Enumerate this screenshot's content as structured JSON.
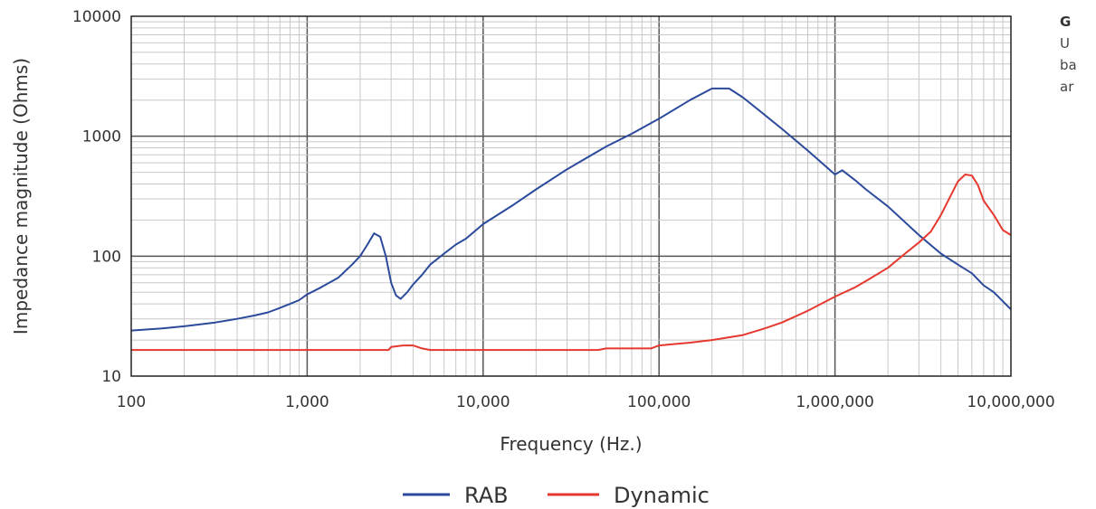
{
  "side_note": {
    "line1": "G",
    "line2": "U",
    "line3": "ba",
    "line4": "ar"
  },
  "chart_data": {
    "type": "line",
    "title": "",
    "xlabel": "Frequency (Hz.)",
    "ylabel": "Impedance magnitude (Ohms)",
    "xscale": "log",
    "yscale": "log",
    "xlim": [
      100,
      10000000
    ],
    "ylim": [
      10,
      10000
    ],
    "grid": true,
    "legend": "bottom-center",
    "x_ticks": [
      {
        "value": 100,
        "label": "100"
      },
      {
        "value": 1000,
        "label": "1,000"
      },
      {
        "value": 10000,
        "label": "10,000"
      },
      {
        "value": 100000,
        "label": "100,000"
      },
      {
        "value": 1000000,
        "label": "1,000,000"
      },
      {
        "value": 10000000,
        "label": "10,000,000"
      }
    ],
    "y_ticks": [
      {
        "value": 10,
        "label": "10"
      },
      {
        "value": 100,
        "label": "100"
      },
      {
        "value": 1000,
        "label": "1000"
      },
      {
        "value": 10000,
        "label": "10000"
      }
    ],
    "series": [
      {
        "name": "RAB",
        "color": "#2b4a9b",
        "points": [
          [
            100,
            24
          ],
          [
            150,
            25
          ],
          [
            200,
            26
          ],
          [
            300,
            28
          ],
          [
            400,
            30
          ],
          [
            500,
            32
          ],
          [
            600,
            34
          ],
          [
            700,
            37
          ],
          [
            800,
            40
          ],
          [
            900,
            43
          ],
          [
            1000,
            48
          ],
          [
            1200,
            55
          ],
          [
            1500,
            66
          ],
          [
            1800,
            85
          ],
          [
            2000,
            100
          ],
          [
            2200,
            125
          ],
          [
            2400,
            155
          ],
          [
            2600,
            145
          ],
          [
            2800,
            100
          ],
          [
            3000,
            60
          ],
          [
            3200,
            47
          ],
          [
            3400,
            44
          ],
          [
            3700,
            50
          ],
          [
            4000,
            58
          ],
          [
            4500,
            70
          ],
          [
            5000,
            85
          ],
          [
            6000,
            105
          ],
          [
            7000,
            125
          ],
          [
            8000,
            140
          ],
          [
            10000,
            185
          ],
          [
            15000,
            270
          ],
          [
            20000,
            360
          ],
          [
            30000,
            530
          ],
          [
            50000,
            820
          ],
          [
            70000,
            1050
          ],
          [
            100000,
            1400
          ],
          [
            150000,
            2000
          ],
          [
            200000,
            2500
          ],
          [
            250000,
            2500
          ],
          [
            300000,
            2100
          ],
          [
            400000,
            1500
          ],
          [
            500000,
            1150
          ],
          [
            700000,
            760
          ],
          [
            1000000,
            480
          ],
          [
            1100000,
            520
          ],
          [
            1300000,
            430
          ],
          [
            1500000,
            360
          ],
          [
            2000000,
            260
          ],
          [
            3000000,
            150
          ],
          [
            4000000,
            105
          ],
          [
            5000000,
            85
          ],
          [
            6000000,
            72
          ],
          [
            7000000,
            57
          ],
          [
            8000000,
            50
          ],
          [
            9000000,
            42
          ],
          [
            10000000,
            36
          ]
        ]
      },
      {
        "name": "Dynamic",
        "color": "#e5392f",
        "points": [
          [
            100,
            16.5
          ],
          [
            2900,
            16.5
          ],
          [
            3000,
            17.5
          ],
          [
            3500,
            18
          ],
          [
            4000,
            18
          ],
          [
            4500,
            17
          ],
          [
            5000,
            16.5
          ],
          [
            45000,
            16.5
          ],
          [
            50000,
            17
          ],
          [
            90000,
            17
          ],
          [
            100000,
            18
          ],
          [
            150000,
            19
          ],
          [
            200000,
            20
          ],
          [
            300000,
            22
          ],
          [
            400000,
            25
          ],
          [
            500000,
            28
          ],
          [
            700000,
            35
          ],
          [
            1000000,
            46
          ],
          [
            1300000,
            55
          ],
          [
            1500000,
            62
          ],
          [
            2000000,
            80
          ],
          [
            2500000,
            105
          ],
          [
            3000000,
            130
          ],
          [
            3500000,
            160
          ],
          [
            4000000,
            220
          ],
          [
            4500000,
            310
          ],
          [
            5000000,
            420
          ],
          [
            5500000,
            480
          ],
          [
            6000000,
            470
          ],
          [
            6500000,
            390
          ],
          [
            7000000,
            290
          ],
          [
            8000000,
            220
          ],
          [
            9000000,
            165
          ],
          [
            10000000,
            150
          ]
        ]
      }
    ]
  }
}
